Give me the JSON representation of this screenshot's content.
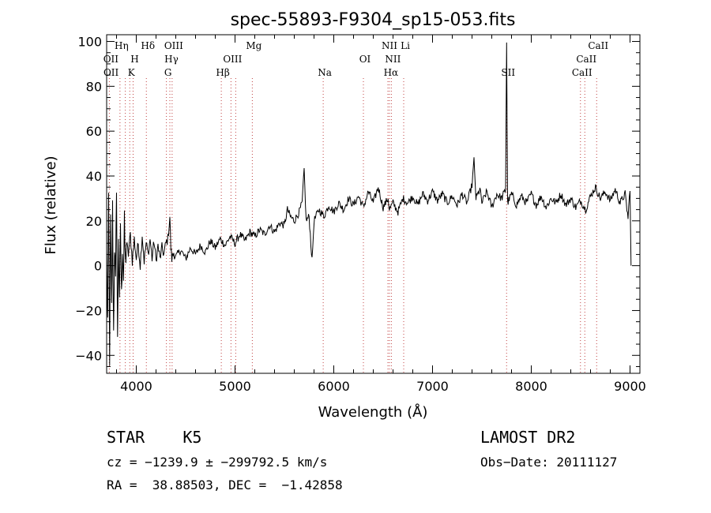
{
  "chart_data": {
    "type": "line",
    "title": "spec-55893-F9304_sp15-053.fits",
    "xlabel": "Wavelength (Å)",
    "ylabel": "Flux (relative)",
    "xlim": [
      3700,
      9100
    ],
    "ylim": [
      -48,
      103
    ],
    "xticks": [
      4000,
      5000,
      6000,
      7000,
      8000,
      9000
    ],
    "yticks": [
      -40,
      -20,
      0,
      20,
      40,
      60,
      80,
      100
    ],
    "ytick_labels": [
      "−40",
      "−20",
      "0",
      "20",
      "40",
      "60",
      "80",
      "100"
    ],
    "grid": false,
    "series": [
      {
        "values_anchor": [
          [
            3700,
            5
          ],
          [
            3710,
            -25
          ],
          [
            3720,
            30
          ],
          [
            3730,
            -40
          ],
          [
            3740,
            20
          ],
          [
            3750,
            -20
          ],
          [
            3760,
            25
          ],
          [
            3770,
            -30
          ],
          [
            3780,
            10
          ],
          [
            3790,
            -10
          ],
          [
            3800,
            38
          ],
          [
            3810,
            -35
          ],
          [
            3820,
            15
          ],
          [
            3830,
            -20
          ],
          [
            3840,
            20
          ],
          [
            3850,
            -15
          ],
          [
            3860,
            10
          ],
          [
            3870,
            -5
          ],
          [
            3880,
            18
          ],
          [
            3890,
            0
          ],
          [
            3900,
            10
          ],
          [
            3920,
            5
          ],
          [
            3940,
            14
          ],
          [
            3960,
            2
          ],
          [
            3980,
            12
          ],
          [
            4000,
            3
          ],
          [
            4020,
            10
          ],
          [
            4040,
            0
          ],
          [
            4060,
            14
          ],
          [
            4080,
            2
          ],
          [
            4100,
            10
          ],
          [
            4120,
            5
          ],
          [
            4140,
            12
          ],
          [
            4160,
            3
          ],
          [
            4180,
            11
          ],
          [
            4200,
            2
          ],
          [
            4220,
            9
          ],
          [
            4240,
            3
          ],
          [
            4260,
            8
          ],
          [
            4280,
            5
          ],
          [
            4300,
            10
          ],
          [
            4320,
            12
          ],
          [
            4340,
            22
          ],
          [
            4350,
            8
          ],
          [
            4360,
            3
          ],
          [
            4380,
            6
          ],
          [
            4400,
            4
          ],
          [
            4450,
            7
          ],
          [
            4500,
            3
          ],
          [
            4550,
            8
          ],
          [
            4600,
            5
          ],
          [
            4650,
            9
          ],
          [
            4700,
            6
          ],
          [
            4750,
            11
          ],
          [
            4800,
            8
          ],
          [
            4850,
            12
          ],
          [
            4900,
            9
          ],
          [
            4950,
            13
          ],
          [
            5000,
            10
          ],
          [
            5050,
            14
          ],
          [
            5100,
            11
          ],
          [
            5150,
            15
          ],
          [
            5200,
            13
          ],
          [
            5250,
            16
          ],
          [
            5300,
            14
          ],
          [
            5350,
            18
          ],
          [
            5400,
            15
          ],
          [
            5450,
            19
          ],
          [
            5500,
            18
          ],
          [
            5530,
            25
          ],
          [
            5560,
            22
          ],
          [
            5600,
            20
          ],
          [
            5650,
            24
          ],
          [
            5680,
            28
          ],
          [
            5700,
            43
          ],
          [
            5720,
            20
          ],
          [
            5750,
            22
          ],
          [
            5780,
            2
          ],
          [
            5800,
            20
          ],
          [
            5850,
            25
          ],
          [
            5900,
            22
          ],
          [
            5950,
            27
          ],
          [
            6000,
            24
          ],
          [
            6050,
            28
          ],
          [
            6100,
            25
          ],
          [
            6150,
            30
          ],
          [
            6200,
            27
          ],
          [
            6250,
            31
          ],
          [
            6300,
            26
          ],
          [
            6350,
            33
          ],
          [
            6400,
            28
          ],
          [
            6450,
            35
          ],
          [
            6500,
            26
          ],
          [
            6550,
            30
          ],
          [
            6563,
            25
          ],
          [
            6600,
            28
          ],
          [
            6650,
            24
          ],
          [
            6700,
            30
          ],
          [
            6750,
            28
          ],
          [
            6800,
            31
          ],
          [
            6850,
            27
          ],
          [
            6900,
            32
          ],
          [
            6950,
            29
          ],
          [
            7000,
            33
          ],
          [
            7050,
            29
          ],
          [
            7100,
            32
          ],
          [
            7150,
            28
          ],
          [
            7200,
            31
          ],
          [
            7250,
            27
          ],
          [
            7300,
            32
          ],
          [
            7350,
            28
          ],
          [
            7400,
            36
          ],
          [
            7420,
            47
          ],
          [
            7440,
            30
          ],
          [
            7480,
            34
          ],
          [
            7500,
            28
          ],
          [
            7550,
            33
          ],
          [
            7600,
            26
          ],
          [
            7650,
            32
          ],
          [
            7700,
            30
          ],
          [
            7740,
            34
          ],
          [
            7750,
            100
          ],
          [
            7760,
            28
          ],
          [
            7800,
            32
          ],
          [
            7850,
            27
          ],
          [
            7900,
            31
          ],
          [
            7950,
            28
          ],
          [
            8000,
            32
          ],
          [
            8050,
            27
          ],
          [
            8100,
            31
          ],
          [
            8150,
            26
          ],
          [
            8200,
            30
          ],
          [
            8250,
            28
          ],
          [
            8300,
            32
          ],
          [
            8350,
            27
          ],
          [
            8400,
            30
          ],
          [
            8450,
            26
          ],
          [
            8500,
            29
          ],
          [
            8550,
            25
          ],
          [
            8600,
            31
          ],
          [
            8650,
            35
          ],
          [
            8700,
            30
          ],
          [
            8750,
            33
          ],
          [
            8800,
            29
          ],
          [
            8850,
            34
          ],
          [
            8900,
            28
          ],
          [
            8950,
            32
          ],
          [
            8980,
            21
          ],
          [
            9000,
            35
          ],
          [
            9010,
            0
          ]
        ]
      }
    ],
    "line_markers": [
      {
        "label": "Hη",
        "x": 3835,
        "row": 0
      },
      {
        "label": "Hδ",
        "x": 4102,
        "row": 0
      },
      {
        "label": "OIII",
        "x": 4363,
        "row": 0
      },
      {
        "label": "Mg",
        "x": 5175,
        "row": 0
      },
      {
        "label": "NII",
        "x": 6548,
        "row": 0
      },
      {
        "label": "Li",
        "x": 6708,
        "row": 0
      },
      {
        "label": "CaII",
        "x": 8662,
        "row": 0
      },
      {
        "label": "OII",
        "x": 3727,
        "row": 1
      },
      {
        "label": "H",
        "x": 3968,
        "row": 1
      },
      {
        "label": "Hγ",
        "x": 4340,
        "row": 1
      },
      {
        "label": "OIII",
        "x": 4959,
        "row": 1
      },
      {
        "label": "OI",
        "x": 6300,
        "row": 1
      },
      {
        "label": "NII",
        "x": 6583,
        "row": 1
      },
      {
        "label": "CaII",
        "x": 8542,
        "row": 1
      },
      {
        "label": "OII",
        "x": 3729,
        "row": 2
      },
      {
        "label": "K",
        "x": 3934,
        "row": 2
      },
      {
        "label": "G",
        "x": 4305,
        "row": 2
      },
      {
        "label": "Hβ",
        "x": 4861,
        "row": 2
      },
      {
        "label": "Na",
        "x": 5893,
        "row": 2
      },
      {
        "label": "Hα",
        "x": 6563,
        "row": 2
      },
      {
        "label": "SII",
        "x": 7750,
        "row": 2
      },
      {
        "label": "CaII",
        "x": 8498,
        "row": 2
      }
    ],
    "marker_lines_x": [
      3727,
      3835,
      3889,
      3934,
      3968,
      4102,
      4305,
      4340,
      4363,
      4861,
      4959,
      5007,
      5175,
      5893,
      6300,
      6548,
      6563,
      6583,
      6708,
      7750,
      8498,
      8542,
      8662
    ]
  },
  "footer": {
    "object_type": "STAR    K5",
    "survey": "LAMOST DR2",
    "cz_line": "cz = −1239.9 ± −299792.5 km/s",
    "obs_date": "Obs−Date: 20111127",
    "coords": "RA =  38.88503, DEC =  −1.42858"
  }
}
